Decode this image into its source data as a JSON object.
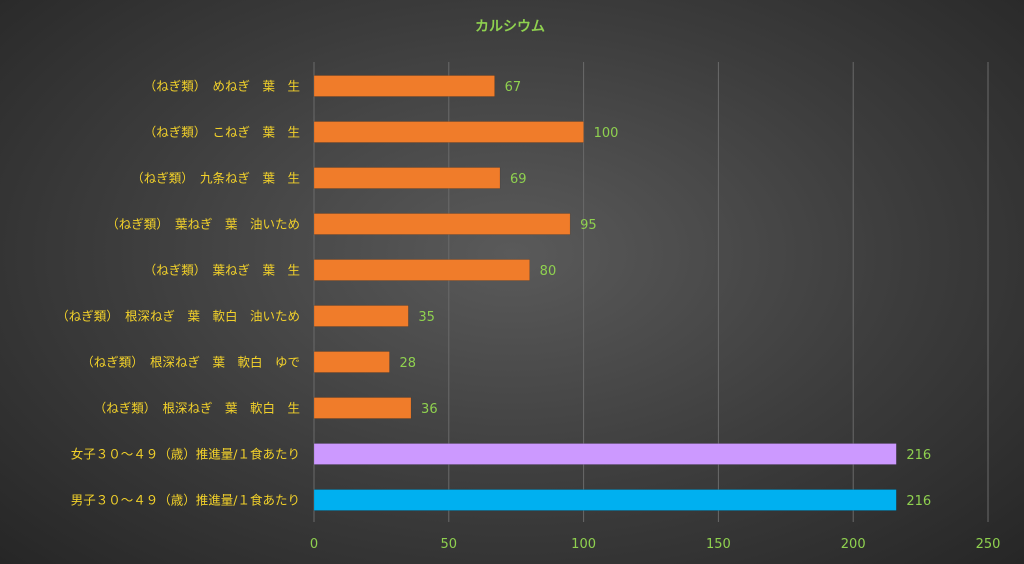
{
  "chart_data": {
    "type": "bar",
    "orientation": "horizontal",
    "title": "カルシウム",
    "categories": [
      "（ねぎ類）　めねぎ　葉　生",
      "（ねぎ類）　こねぎ　葉　生",
      "（ねぎ類）　九条ねぎ　葉　生",
      "（ねぎ類）　葉ねぎ　葉　油いため",
      "（ねぎ類）　葉ねぎ　葉　生",
      "（ねぎ類）　根深ねぎ　葉　軟白　油いため",
      "（ねぎ類）　根深ねぎ　葉　軟白　ゆで",
      "（ねぎ類）　根深ねぎ　葉　軟白　生",
      "女子３０～４９（歳）推進量/１食あたり",
      "男子３０～４９（歳）推進量/１食あたり"
    ],
    "values": [
      67,
      100,
      69,
      95,
      80,
      35,
      28,
      36,
      216,
      216
    ],
    "bar_colors": [
      "#f07c2a",
      "#f07c2a",
      "#f07c2a",
      "#f07c2a",
      "#f07c2a",
      "#f07c2a",
      "#f07c2a",
      "#f07c2a",
      "#cc99ff",
      "#00b0f0"
    ],
    "xlim": [
      0,
      250
    ],
    "xticks": [
      0,
      50,
      100,
      150,
      200,
      250
    ],
    "xlabel": "",
    "ylabel": "",
    "grid": true,
    "legend": "none"
  }
}
